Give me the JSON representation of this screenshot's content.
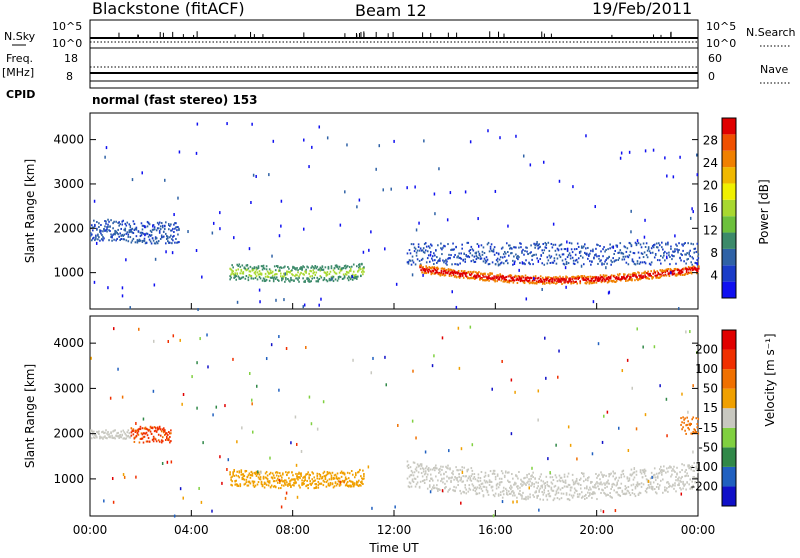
{
  "header": {
    "station": "Blackstone (fitACF)",
    "beam": "Beam 12",
    "date": "19/Feb/2011"
  },
  "top_panel": {
    "nsky_label": "N.Sky",
    "nsky_ticks": [
      "10^5",
      "10^0"
    ],
    "freq_label": "Freq.",
    "freq_unit": "[MHz]",
    "freq_ticks": [
      "18",
      "8"
    ],
    "cpid_label": "CPID",
    "right_nsky_ticks": [
      "10^5",
      "10^0"
    ],
    "right_freq_ticks": [
      "60",
      "0"
    ],
    "nsearch_label": "N.Search",
    "nave_label": "Nave",
    "cpid_text": "normal (fast stereo) 153"
  },
  "chart_data": [
    {
      "type": "heatmap",
      "name": "power",
      "ylabel": "Slant Range [km]",
      "ylim": [
        180,
        4600
      ],
      "yticks": [
        1000,
        2000,
        3000,
        4000
      ],
      "x_start": "00:00",
      "x_end": "24:00",
      "colorbar": {
        "label": "Power [dB]",
        "ticks": [
          "28",
          "24",
          "20",
          "16",
          "12",
          "8",
          "4"
        ],
        "colors": [
          "#1010f0",
          "#1a3cc8",
          "#2f62a6",
          "#3c8a6a",
          "#6cc03c",
          "#a8d830",
          "#f0f000",
          "#f0b800",
          "#f08000",
          "#f05000",
          "#e00000"
        ]
      }
    },
    {
      "type": "heatmap",
      "name": "velocity",
      "ylabel": "Slant Range [km]",
      "ylim": [
        180,
        4600
      ],
      "yticks": [
        1000,
        2000,
        3000,
        4000
      ],
      "xlabel": "Time UT",
      "xticks": [
        "00:00",
        "04:00",
        "08:00",
        "12:00",
        "16:00",
        "20:00",
        "00:00"
      ],
      "colorbar": {
        "label": "Velocity [m s⁻¹]",
        "ticks": [
          "200",
          "100",
          "50",
          "15",
          "-15",
          "-50",
          "-100",
          "-200"
        ],
        "colors": [
          "#1010c8",
          "#2060c0",
          "#308848",
          "#80d040",
          "#c8c8c0",
          "#f0a000",
          "#f07000",
          "#f03000",
          "#e00000"
        ]
      }
    }
  ]
}
